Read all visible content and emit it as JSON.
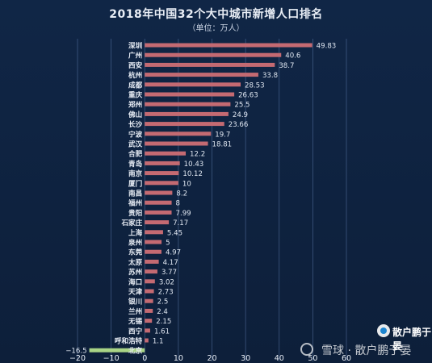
{
  "chart_data": {
    "type": "bar",
    "orientation": "horizontal",
    "title": "2018年中国32个大中城市新增人口排名",
    "subtitle": "（单位：万人）",
    "categories": [
      "深圳",
      "广州",
      "西安",
      "杭州",
      "成都",
      "重庆",
      "郑州",
      "佛山",
      "长沙",
      "宁波",
      "武汉",
      "合肥",
      "青岛",
      "南京",
      "厦门",
      "南昌",
      "福州",
      "贵阳",
      "石家庄",
      "上海",
      "泉州",
      "东莞",
      "太原",
      "苏州",
      "海口",
      "天津",
      "银川",
      "兰州",
      "无锡",
      "西宁",
      "呼和浩特",
      "北京"
    ],
    "values": [
      49.83,
      40.6,
      38.7,
      33.8,
      28.53,
      26.63,
      25.5,
      24.9,
      23.66,
      19.7,
      18.81,
      12.2,
      10.43,
      10.12,
      10,
      8.2,
      8,
      7.99,
      7.17,
      5.45,
      5,
      4.97,
      4.17,
      3.77,
      3.02,
      2.73,
      2.5,
      2.4,
      2.15,
      1.61,
      1.1,
      -16.5
    ],
    "value_labels": [
      "49.83",
      "40.6",
      "38.7",
      "33.8",
      "28.53",
      "26.63",
      "25.5",
      "24.9",
      "23.66",
      "19.7",
      "18.81",
      "12.2",
      "10.43",
      "10.12",
      "10",
      "8.2",
      "8",
      "7.99",
      "7.17",
      "5.45",
      "5",
      "4.97",
      "4.17",
      "3.77",
      "3.02",
      "2.73",
      "2.5",
      "2.4",
      "2.15",
      "1.61",
      "1.1",
      "−16.5"
    ],
    "xlim": [
      -20,
      60
    ],
    "xticks": [
      -20,
      -10,
      0,
      10,
      20,
      30,
      40,
      50,
      60
    ],
    "xtick_labels": [
      "−20",
      "−10",
      "0",
      "10",
      "20",
      "30",
      "40",
      "50",
      "60"
    ],
    "grid": "vertical",
    "colors": {
      "positive": "#c46a72",
      "negative": "#a9d486",
      "background": "#0f2341",
      "grid": "#6f8fc4",
      "text": "#e8edf5"
    }
  },
  "watermark": {
    "author": "散户鹏于晏",
    "site": "雪球 · 散户鹏于晏"
  }
}
